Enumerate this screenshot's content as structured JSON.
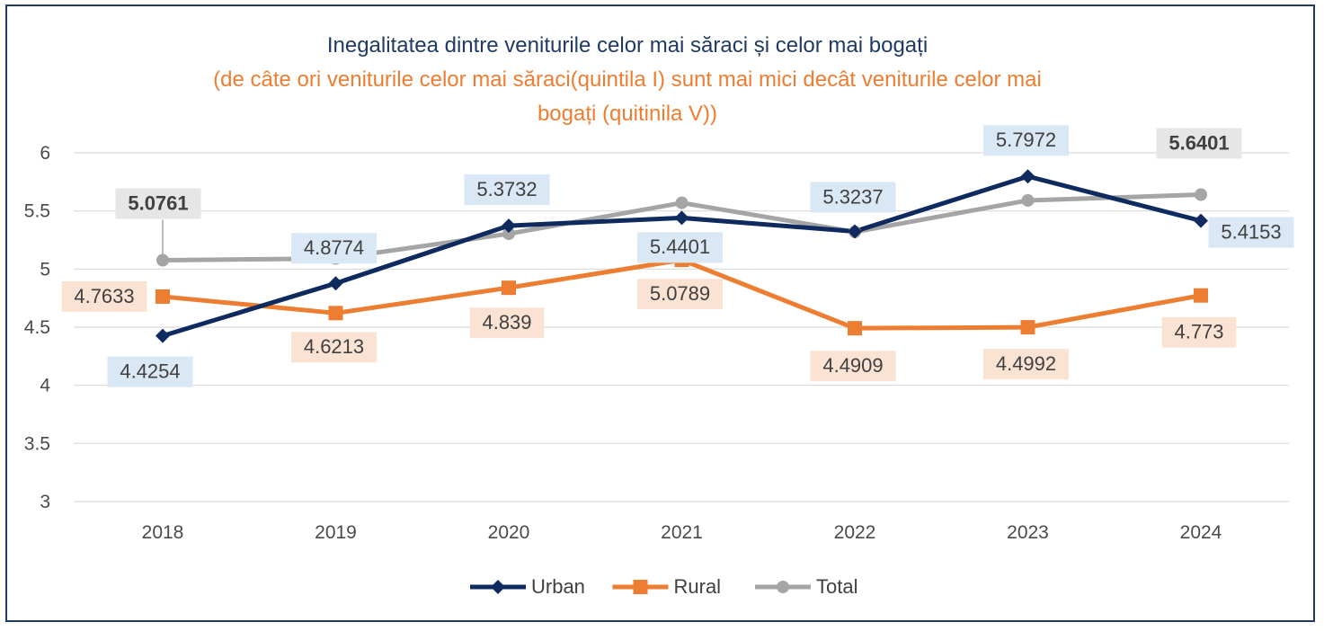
{
  "chart_data": {
    "type": "line",
    "title": "Inegalitatea dintre veniturile celor mai săraci și celor mai bogați",
    "subtitle_line1": "(de câte ori veniturile celor mai săraci(quintila I) sunt mai mici decât veniturile celor mai",
    "subtitle_line2": "bogați (quitinila V))",
    "categories": [
      "2018",
      "2019",
      "2020",
      "2021",
      "2022",
      "2023",
      "2024"
    ],
    "y_ticks": [
      "3",
      "3.5",
      "4",
      "4.5",
      "5",
      "5.5",
      "6"
    ],
    "ylim": [
      3,
      6
    ],
    "grid": true,
    "legend_position": "bottom",
    "series": [
      {
        "name": "Urban",
        "color": "#0f2a5f",
        "marker": "diamond",
        "values": [
          4.4254,
          4.8774,
          5.3732,
          5.4401,
          5.3237,
          5.7972,
          5.4153
        ],
        "labels": [
          "4.4254",
          "4.8774",
          "5.3732",
          "5.4401",
          "5.3237",
          "5.7972",
          "5.4153"
        ]
      },
      {
        "name": "Rural",
        "color": "#ed7d31",
        "marker": "square",
        "values": [
          4.7633,
          4.6213,
          4.839,
          5.0789,
          4.4909,
          4.4992,
          4.773
        ],
        "labels": [
          "4.7633",
          "4.6213",
          "4.839",
          "5.0789",
          "4.4909",
          "4.4992",
          "4.773"
        ]
      },
      {
        "name": "Total",
        "color": "#a5a5a5",
        "marker": "circle",
        "values": [
          5.0761,
          5.0909,
          5.3036,
          5.5696,
          5.3194,
          5.5905,
          5.6401
        ],
        "labels": [
          "5.0761",
          null,
          null,
          null,
          null,
          null,
          "5.6401"
        ]
      }
    ]
  },
  "colors": {
    "frame_border": "#1f3a64",
    "title": "#1f3a64",
    "subtitle": "#ed7d31",
    "grid": "#d9d9d9",
    "urban_label_bg": "#dae7f4",
    "rural_label_bg": "#fbe3d4",
    "total_label_bg": "#e6e6e6"
  }
}
